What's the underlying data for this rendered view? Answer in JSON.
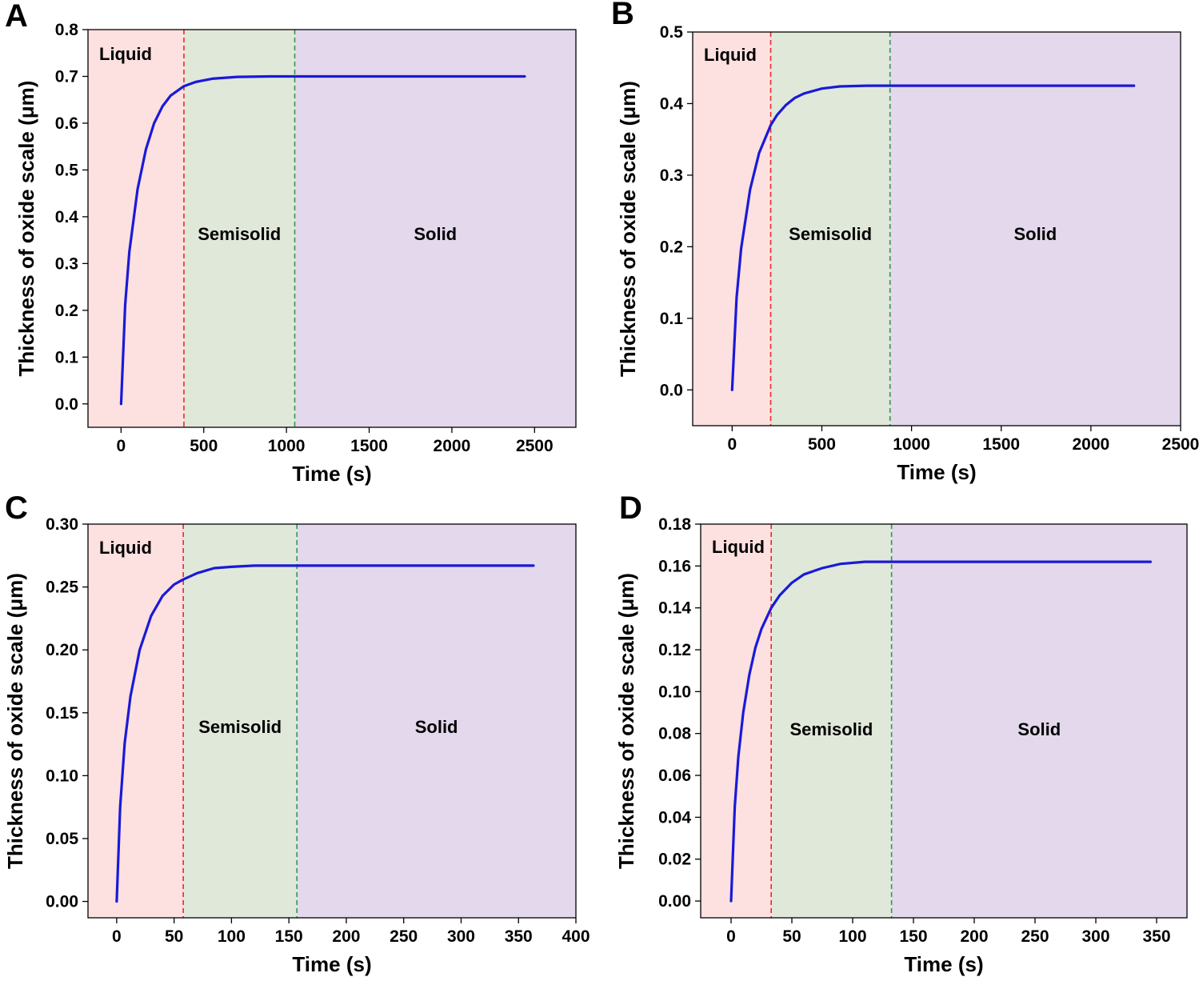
{
  "figure": {
    "colors": {
      "liquid": "#fde0e0",
      "semisolid": "#e0e8da",
      "solid": "#e3d8ec",
      "curve": "#1a1ad6",
      "liquid_boundary": "#e8282a",
      "semisolid_boundary": "#2f9a4a"
    }
  },
  "chart_data": [
    {
      "type": "line",
      "panel_label": "A",
      "xlabel": "Time (s)",
      "ylabel": "Thickness of oxide scale (μm)",
      "xlim": [
        -200,
        2750
      ],
      "ylim": [
        -0.05,
        0.8
      ],
      "xticks": [
        0,
        500,
        1000,
        1500,
        2000,
        2500
      ],
      "yticks": [
        0.0,
        0.1,
        0.2,
        0.3,
        0.4,
        0.5,
        0.6,
        0.7,
        0.8
      ],
      "ytick_decimals": 1,
      "regions": [
        {
          "name": "Liquid",
          "from": -200,
          "to": 380
        },
        {
          "name": "Semisolid",
          "from": 380,
          "to": 1050
        },
        {
          "name": "Solid",
          "from": 1050,
          "to": 2750
        }
      ],
      "series": [
        {
          "name": "Oxide scale thickness",
          "x": [
            0,
            25,
            50,
            100,
            150,
            200,
            250,
            300,
            380,
            450,
            550,
            700,
            900,
            1050,
            1500,
            2000,
            2440
          ],
          "y": [
            0.0,
            0.212,
            0.325,
            0.459,
            0.544,
            0.6,
            0.636,
            0.659,
            0.679,
            0.688,
            0.695,
            0.699,
            0.7,
            0.7,
            0.7,
            0.7,
            0.7
          ]
        }
      ]
    },
    {
      "type": "line",
      "panel_label": "B",
      "xlabel": "Time (s)",
      "ylabel": "Thickness of oxide scale (μm)",
      "xlim": [
        -220,
        2500
      ],
      "ylim": [
        -0.05,
        0.5
      ],
      "xticks": [
        0,
        500,
        1000,
        1500,
        2000,
        2500
      ],
      "yticks": [
        0.0,
        0.1,
        0.2,
        0.3,
        0.4,
        0.5
      ],
      "ytick_decimals": 1,
      "regions": [
        {
          "name": "Liquid",
          "from": -220,
          "to": 215
        },
        {
          "name": "Semisolid",
          "from": 215,
          "to": 880
        },
        {
          "name": "Solid",
          "from": 880,
          "to": 2500
        }
      ],
      "series": [
        {
          "name": "Oxide scale thickness",
          "x": [
            0,
            25,
            50,
            100,
            150,
            215,
            250,
            300,
            350,
            400,
            500,
            600,
            750,
            880,
            1500,
            2000,
            2240
          ],
          "y": [
            0.0,
            0.129,
            0.198,
            0.28,
            0.331,
            0.37,
            0.384,
            0.398,
            0.408,
            0.414,
            0.421,
            0.424,
            0.425,
            0.425,
            0.425,
            0.425,
            0.425
          ]
        }
      ]
    },
    {
      "type": "line",
      "panel_label": "C",
      "xlabel": "Time (s)",
      "ylabel": "Thickness of oxide scale (μm)",
      "xlim": [
        -25,
        400
      ],
      "ylim": [
        -0.013,
        0.3
      ],
      "xticks": [
        0,
        50,
        100,
        150,
        200,
        250,
        300,
        350,
        400
      ],
      "yticks": [
        0.0,
        0.05,
        0.1,
        0.15,
        0.2,
        0.25,
        0.3
      ],
      "ytick_decimals": 2,
      "regions": [
        {
          "name": "Liquid",
          "from": -25,
          "to": 58
        },
        {
          "name": "Semisolid",
          "from": 58,
          "to": 157
        },
        {
          "name": "Solid",
          "from": 157,
          "to": 400
        }
      ],
      "series": [
        {
          "name": "Oxide scale thickness",
          "x": [
            0,
            3,
            7,
            12,
            20,
            30,
            40,
            50,
            58,
            70,
            85,
            100,
            120,
            157,
            250,
            363
          ],
          "y": [
            0.0,
            0.075,
            0.126,
            0.163,
            0.2,
            0.227,
            0.243,
            0.252,
            0.256,
            0.261,
            0.265,
            0.266,
            0.267,
            0.267,
            0.267,
            0.267
          ]
        }
      ]
    },
    {
      "type": "line",
      "panel_label": "D",
      "xlabel": "Time (s)",
      "ylabel": "Thickness of oxide scale (μm)",
      "xlim": [
        -25,
        375
      ],
      "ylim": [
        -0.008,
        0.18
      ],
      "xticks": [
        0,
        50,
        100,
        150,
        200,
        250,
        300,
        350
      ],
      "yticks": [
        0.0,
        0.02,
        0.04,
        0.06,
        0.08,
        0.1,
        0.12,
        0.14,
        0.16,
        0.18
      ],
      "ytick_decimals": 2,
      "regions": [
        {
          "name": "Liquid",
          "from": -25,
          "to": 33
        },
        {
          "name": "Semisolid",
          "from": 33,
          "to": 132
        },
        {
          "name": "Solid",
          "from": 132,
          "to": 375
        }
      ],
      "series": [
        {
          "name": "Oxide scale thickness",
          "x": [
            0,
            3,
            6,
            10,
            15,
            20,
            25,
            33,
            40,
            50,
            60,
            75,
            90,
            110,
            132,
            250,
            345
          ],
          "y": [
            0.0,
            0.045,
            0.069,
            0.09,
            0.108,
            0.121,
            0.13,
            0.14,
            0.146,
            0.152,
            0.156,
            0.159,
            0.161,
            0.162,
            0.162,
            0.162,
            0.162
          ]
        }
      ]
    }
  ]
}
